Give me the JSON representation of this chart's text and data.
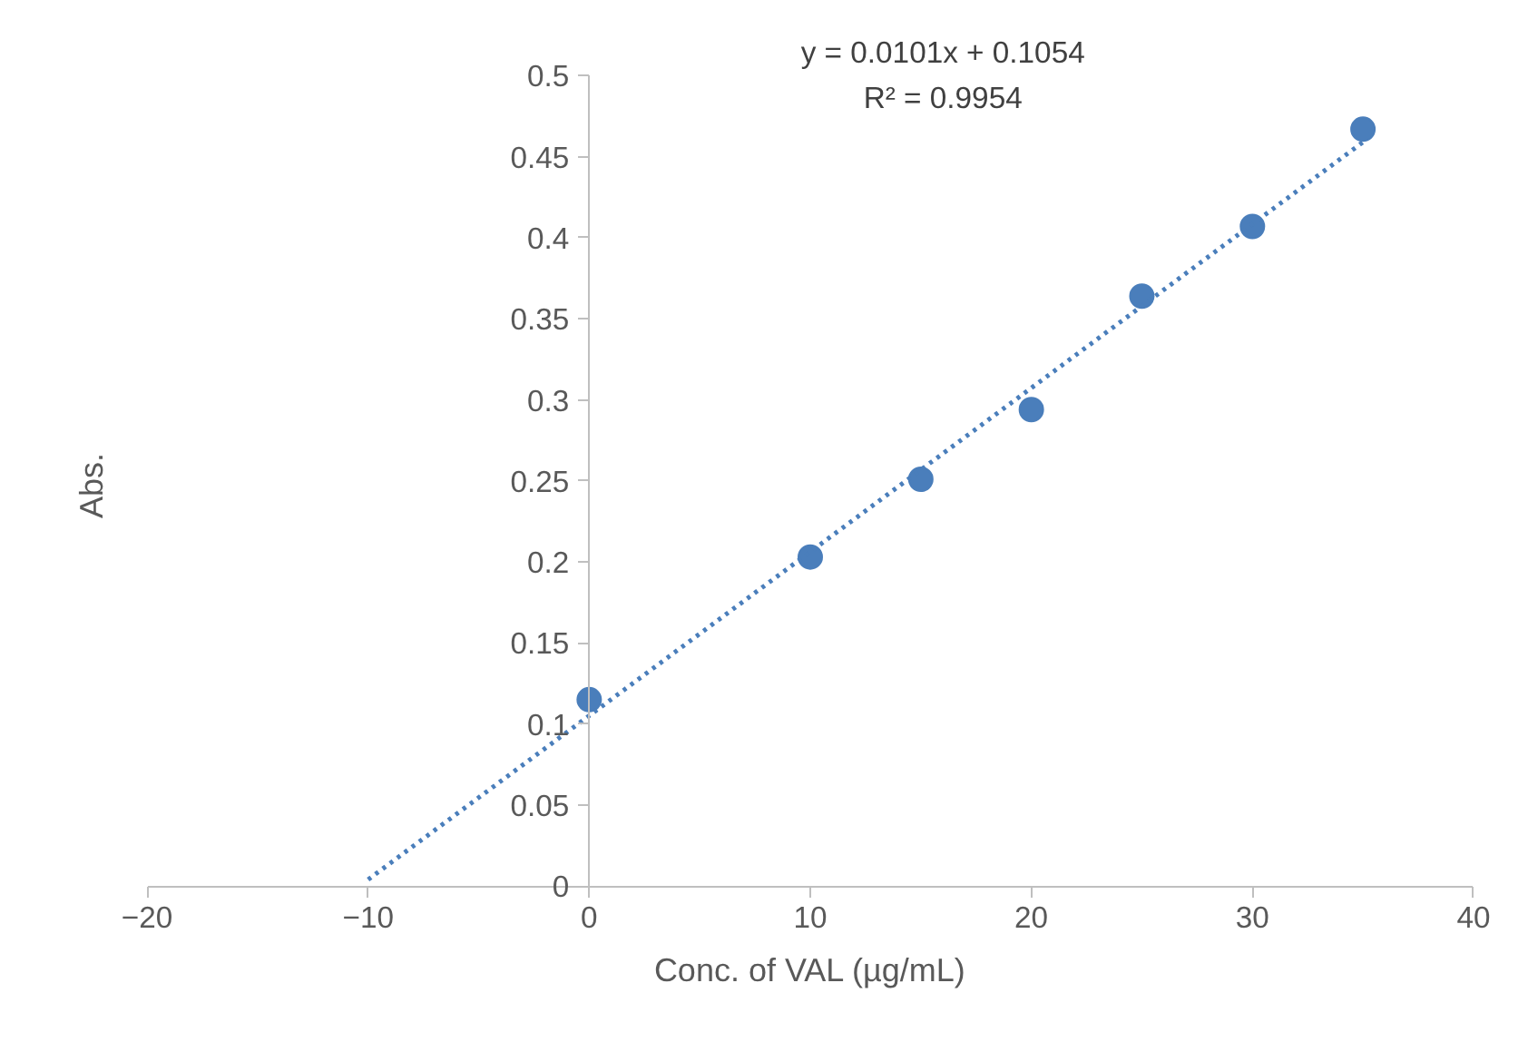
{
  "chart_data": {
    "type": "scatter",
    "xlabel": "Conc. of VAL (µg/mL)",
    "ylabel": "Abs.",
    "xlim": [
      -20,
      40
    ],
    "xticks": [
      -20,
      -10,
      0,
      10,
      20,
      30,
      40
    ],
    "ylim": [
      0,
      0.5
    ],
    "yticks": [
      0,
      0.05,
      0.1,
      0.15,
      0.2,
      0.25,
      0.3,
      0.35,
      0.4,
      0.45,
      0.5
    ],
    "grid": false,
    "series": [
      {
        "marker": "circle",
        "color": "#4a7ebb",
        "x": [
          0,
          10,
          15,
          20,
          25,
          30,
          35
        ],
        "values": [
          0.115,
          0.203,
          0.251,
          0.294,
          0.364,
          0.407,
          0.467
        ]
      },
      {
        "type": "line",
        "color": "#4a7ebb",
        "line_style": "dotted",
        "marker": "none",
        "x": [
          -10,
          35
        ],
        "values": [
          0.004,
          0.459
        ]
      }
    ],
    "annotations": [
      "y = 0.0101x + 0.1054",
      "R² = 0.9954"
    ]
  }
}
